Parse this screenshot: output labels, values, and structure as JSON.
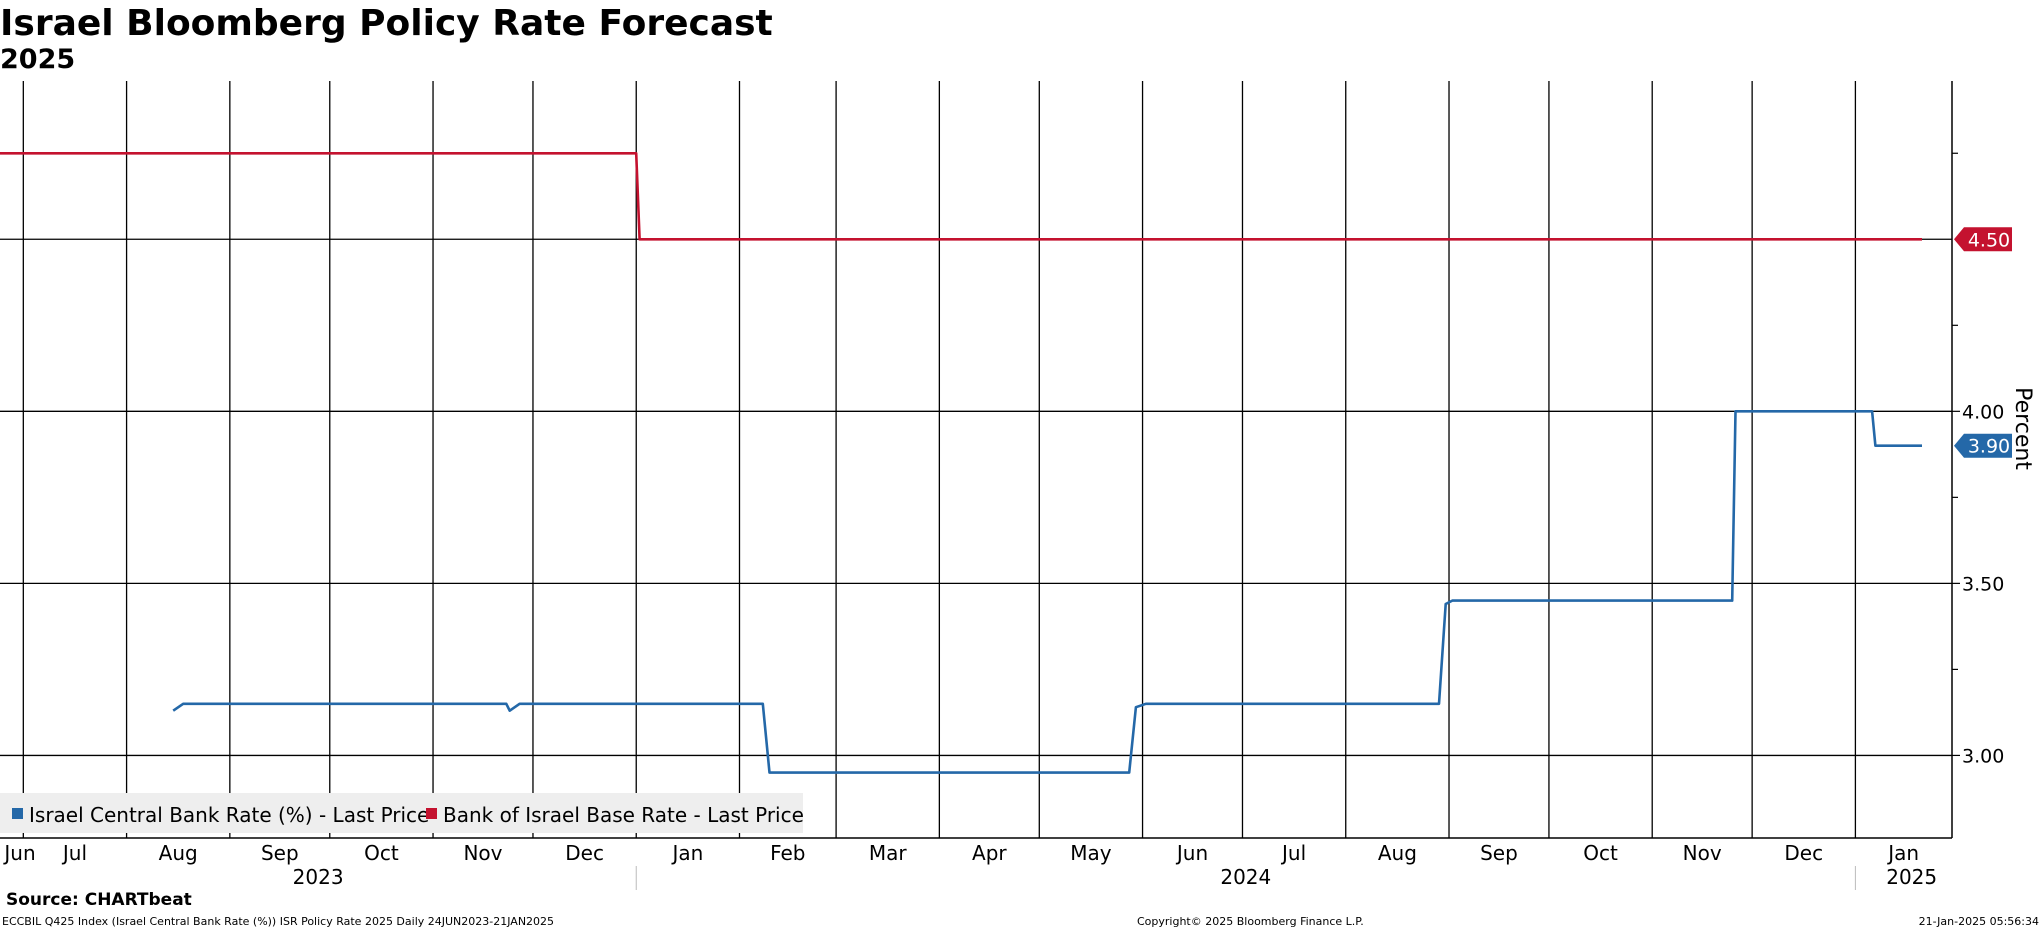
{
  "chart_data": {
    "type": "line",
    "title": "Israel Bloomberg Policy Rate Forecast",
    "subtitle": "2025",
    "ylabel": "Percent",
    "ylim": [
      2.76,
      4.96
    ],
    "yticks": [
      "3.00",
      "3.50",
      "4.00"
    ],
    "y_minor_ticks": [
      3.25,
      3.75,
      4.25,
      4.75
    ],
    "grid": true,
    "legend_position": "bottom-left",
    "x_months": [
      {
        "label": "Jun",
        "date": "2023-06-24"
      },
      {
        "label": "Jul",
        "date": "2023-07-01"
      },
      {
        "label": "Aug",
        "date": "2023-08-01"
      },
      {
        "label": "Sep",
        "date": "2023-09-01"
      },
      {
        "label": "Oct",
        "date": "2023-10-01"
      },
      {
        "label": "Nov",
        "date": "2023-11-01"
      },
      {
        "label": "Dec",
        "date": "2023-12-01"
      },
      {
        "label": "Jan",
        "date": "2024-01-01"
      },
      {
        "label": "Feb",
        "date": "2024-02-01"
      },
      {
        "label": "Mar",
        "date": "2024-03-01"
      },
      {
        "label": "Apr",
        "date": "2024-04-01"
      },
      {
        "label": "May",
        "date": "2024-05-01"
      },
      {
        "label": "Jun",
        "date": "2024-06-01"
      },
      {
        "label": "Jul",
        "date": "2024-07-01"
      },
      {
        "label": "Aug",
        "date": "2024-08-01"
      },
      {
        "label": "Sep",
        "date": "2024-09-01"
      },
      {
        "label": "Oct",
        "date": "2024-10-01"
      },
      {
        "label": "Nov",
        "date": "2024-11-01"
      },
      {
        "label": "Dec",
        "date": "2024-12-01"
      },
      {
        "label": "Jan",
        "date": "2025-01-01"
      }
    ],
    "x_years": [
      "2023",
      "2024",
      "2025"
    ],
    "series": [
      {
        "name": "Israel Central Bank Rate (%) - Last Price",
        "color": "#2468a8",
        "last_value_label": "3.90",
        "points": [
          {
            "x": "2023-08-15",
            "y": 3.13
          },
          {
            "x": "2023-08-18",
            "y": 3.15
          },
          {
            "x": "2023-11-23",
            "y": 3.15
          },
          {
            "x": "2023-11-24",
            "y": 3.13
          },
          {
            "x": "2023-11-27",
            "y": 3.15
          },
          {
            "x": "2024-02-08",
            "y": 3.15
          },
          {
            "x": "2024-02-10",
            "y": 2.95
          },
          {
            "x": "2024-05-28",
            "y": 2.95
          },
          {
            "x": "2024-05-30",
            "y": 3.14
          },
          {
            "x": "2024-06-02",
            "y": 3.15
          },
          {
            "x": "2024-08-29",
            "y": 3.15
          },
          {
            "x": "2024-08-31",
            "y": 3.44
          },
          {
            "x": "2024-09-02",
            "y": 3.45
          },
          {
            "x": "2024-11-25",
            "y": 3.45
          },
          {
            "x": "2024-11-26",
            "y": 4.0
          },
          {
            "x": "2025-01-06",
            "y": 4.0
          },
          {
            "x": "2025-01-07",
            "y": 3.9
          },
          {
            "x": "2025-01-21",
            "y": 3.9
          }
        ]
      },
      {
        "name": "Bank of Israel Base Rate - Last Price",
        "color": "#c4122f",
        "last_value_label": "4.50",
        "points": [
          {
            "x": "2023-06-24",
            "y": 4.75
          },
          {
            "x": "2024-01-01",
            "y": 4.75
          },
          {
            "x": "2024-01-02",
            "y": 4.5
          },
          {
            "x": "2025-01-21",
            "y": 4.5
          }
        ]
      }
    ]
  },
  "footer": {
    "source": "Source: CHARTbeat",
    "left": "ECCBIL Q425 Index (Israel Central Bank Rate (%)) ISR Policy Rate 2025  Daily 24JUN2023-21JAN2025",
    "middle": "Copyright© 2025 Bloomberg Finance L.P.",
    "right": "21-Jan-2025 05:56:34"
  }
}
